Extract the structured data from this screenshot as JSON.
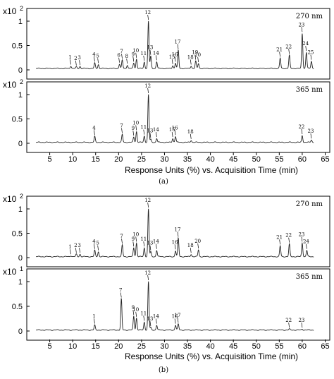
{
  "figure": {
    "panel_a_label": "(a)",
    "panel_b_label": "(b)",
    "xlabel": "Response Units (%) vs. Acquisition Time (min)"
  },
  "chart_data": [
    {
      "type": "line",
      "panel": "a",
      "wavelength": "270 nm",
      "yscale_label": "x10",
      "yscale_exponent": "2",
      "xlim": [
        0,
        66
      ],
      "ylim": [
        0,
        1.1
      ],
      "yticks": [
        0,
        0.5,
        1
      ],
      "xticks": [
        5,
        10,
        15,
        20,
        25,
        30,
        35,
        40,
        45,
        50,
        55,
        60,
        65
      ],
      "baseline": 0.03,
      "peaks": [
        {
          "label": "1",
          "x": 9.6,
          "y": 0.08
        },
        {
          "label": "2",
          "x": 10.8,
          "y": 0.06
        },
        {
          "label": "3",
          "x": 11.6,
          "y": 0.07
        },
        {
          "label": "4",
          "x": 14.8,
          "y": 0.14
        },
        {
          "label": "5",
          "x": 15.6,
          "y": 0.11
        },
        {
          "label": "6",
          "x": 20.2,
          "y": 0.12
        },
        {
          "label": "7",
          "x": 20.8,
          "y": 0.2
        },
        {
          "label": "8",
          "x": 21.9,
          "y": 0.1
        },
        {
          "label": "9",
          "x": 23.3,
          "y": 0.14
        },
        {
          "label": "10",
          "x": 23.9,
          "y": 0.22
        },
        {
          "label": "11",
          "x": 25.6,
          "y": 0.16
        },
        {
          "label": "12",
          "x": 26.5,
          "y": 1.0
        },
        {
          "label": "13",
          "x": 27.0,
          "y": 0.28
        },
        {
          "label": "14",
          "x": 28.3,
          "y": 0.17
        },
        {
          "label": "15",
          "x": 31.8,
          "y": 0.09
        },
        {
          "label": "16",
          "x": 32.4,
          "y": 0.14
        },
        {
          "label": "17",
          "x": 33.0,
          "y": 0.4
        },
        {
          "label": "18",
          "x": 35.8,
          "y": 0.08
        },
        {
          "label": "19",
          "x": 36.8,
          "y": 0.18
        },
        {
          "label": "20",
          "x": 37.4,
          "y": 0.13
        },
        {
          "label": "21",
          "x": 55.2,
          "y": 0.24
        },
        {
          "label": "22",
          "x": 57.2,
          "y": 0.3
        },
        {
          "label": "23",
          "x": 60.0,
          "y": 0.75
        },
        {
          "label": "24",
          "x": 60.9,
          "y": 0.36
        },
        {
          "label": "25",
          "x": 62.0,
          "y": 0.18
        }
      ]
    },
    {
      "type": "line",
      "panel": "a",
      "wavelength": "365 nm",
      "yscale_label": "x10",
      "yscale_exponent": "2",
      "xlim": [
        0,
        66
      ],
      "ylim": [
        0,
        1.1
      ],
      "yticks": [
        0,
        0.5,
        1
      ],
      "xticks": [
        5,
        10,
        15,
        20,
        25,
        30,
        35,
        40,
        45,
        50,
        55,
        60,
        65
      ],
      "baseline": 0.02,
      "peaks": [
        {
          "label": "4",
          "x": 14.8,
          "y": 0.14
        },
        {
          "label": "7",
          "x": 20.8,
          "y": 0.18
        },
        {
          "label": "9",
          "x": 23.3,
          "y": 0.13
        },
        {
          "label": "10",
          "x": 23.9,
          "y": 0.24
        },
        {
          "label": "11",
          "x": 25.6,
          "y": 0.15
        },
        {
          "label": "12",
          "x": 26.5,
          "y": 1.0
        },
        {
          "label": "13",
          "x": 27.0,
          "y": 0.08
        },
        {
          "label": "14",
          "x": 28.3,
          "y": 0.1
        },
        {
          "label": "15",
          "x": 31.8,
          "y": 0.1
        },
        {
          "label": "16",
          "x": 32.4,
          "y": 0.14
        },
        {
          "label": "18",
          "x": 35.8,
          "y": 0.06
        },
        {
          "label": "22",
          "x": 60.0,
          "y": 0.16
        },
        {
          "label": "23",
          "x": 62.0,
          "y": 0.07
        }
      ]
    },
    {
      "type": "line",
      "panel": "b",
      "wavelength": "270 nm",
      "yscale_label": "x10",
      "yscale_exponent": "2",
      "xlim": [
        0,
        66
      ],
      "ylim": [
        0,
        1.1
      ],
      "yticks": [
        0,
        0.5,
        1
      ],
      "xticks": [
        5,
        10,
        15,
        20,
        25,
        30,
        35,
        40,
        45,
        50,
        55,
        60,
        65
      ],
      "baseline": 0.02,
      "peaks": [
        {
          "label": "1",
          "x": 9.6,
          "y": 0.04
        },
        {
          "label": "2",
          "x": 10.8,
          "y": 0.07
        },
        {
          "label": "3",
          "x": 11.6,
          "y": 0.07
        },
        {
          "label": "4",
          "x": 14.8,
          "y": 0.15
        },
        {
          "label": "5",
          "x": 15.6,
          "y": 0.12
        },
        {
          "label": "7",
          "x": 20.8,
          "y": 0.26
        },
        {
          "label": "9",
          "x": 23.3,
          "y": 0.2
        },
        {
          "label": "10",
          "x": 23.9,
          "y": 0.3
        },
        {
          "label": "11",
          "x": 25.6,
          "y": 0.2
        },
        {
          "label": "12",
          "x": 26.5,
          "y": 1.0
        },
        {
          "label": "13",
          "x": 27.0,
          "y": 0.12
        },
        {
          "label": "14",
          "x": 28.3,
          "y": 0.15
        },
        {
          "label": "16",
          "x": 32.4,
          "y": 0.14
        },
        {
          "label": "17",
          "x": 33.0,
          "y": 0.4
        },
        {
          "label": "18",
          "x": 35.8,
          "y": 0.07
        },
        {
          "label": "20",
          "x": 37.4,
          "y": 0.16
        },
        {
          "label": "21",
          "x": 55.2,
          "y": 0.24
        },
        {
          "label": "22",
          "x": 57.2,
          "y": 0.28
        },
        {
          "label": "23",
          "x": 60.0,
          "y": 0.3
        },
        {
          "label": "24",
          "x": 61.0,
          "y": 0.15
        }
      ]
    },
    {
      "type": "line",
      "panel": "b",
      "wavelength": "365 nm",
      "yscale_label": "x10",
      "yscale_exponent": "1",
      "xlim": [
        0,
        66
      ],
      "ylim": [
        0,
        1.1
      ],
      "yticks": [
        0,
        0.5,
        1
      ],
      "xticks": [
        5,
        10,
        15,
        20,
        25,
        30,
        35,
        40,
        45,
        50,
        55,
        60,
        65
      ],
      "baseline": 0.02,
      "peaks": [
        {
          "label": "1",
          "x": 14.8,
          "y": 0.12
        },
        {
          "label": "7",
          "x": 20.6,
          "y": 0.65
        },
        {
          "label": "9",
          "x": 23.3,
          "y": 0.3
        },
        {
          "label": "10",
          "x": 23.9,
          "y": 0.26
        },
        {
          "label": "11",
          "x": 25.6,
          "y": 0.18
        },
        {
          "label": "12",
          "x": 26.5,
          "y": 1.0
        },
        {
          "label": "13",
          "x": 27.0,
          "y": 0.07
        },
        {
          "label": "14",
          "x": 28.3,
          "y": 0.12
        },
        {
          "label": "16",
          "x": 32.4,
          "y": 0.12
        },
        {
          "label": "17",
          "x": 33.0,
          "y": 0.14
        },
        {
          "label": "22",
          "x": 57.2,
          "y": 0.04
        },
        {
          "label": "23",
          "x": 60.0,
          "y": 0.04
        }
      ]
    }
  ]
}
